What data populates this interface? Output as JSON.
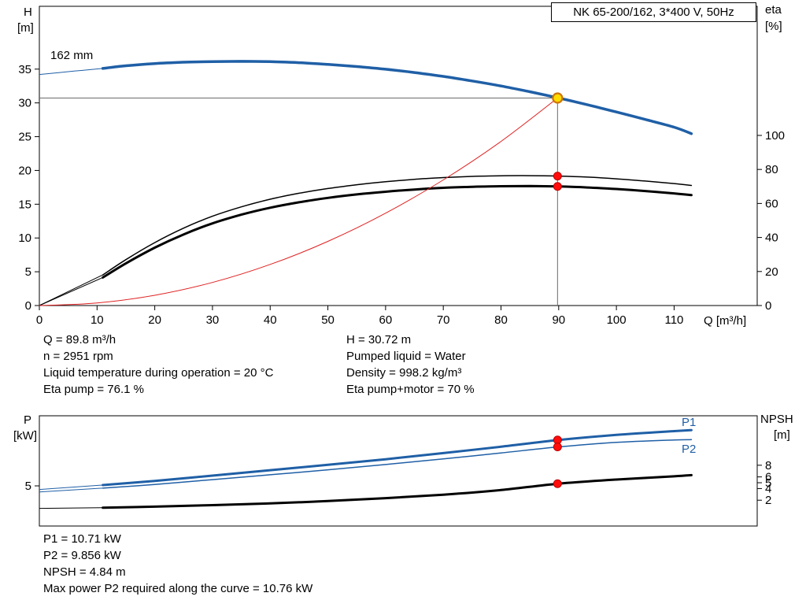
{
  "impeller_label": "162 mm",
  "info_top_left": [
    "Q = 89.8 m³/h",
    "n = 2951 rpm",
    "Liquid temperature during operation = 20 °C",
    "Eta pump = 76.1 %"
  ],
  "info_top_right": [
    "H = 30.72 m",
    "Pumped liquid = Water",
    "Density = 998.2 kg/m³",
    "Eta pump+motor = 70 %"
  ],
  "info_bottom": [
    "P1 = 10.71 kW",
    "P2 = 9.856 kW",
    "NPSH = 4.84 m",
    "Max power P2 required along the curve = 10.76 kW"
  ],
  "colors": {
    "curve_blue": "#1f5fa6",
    "curve_black": "#000000",
    "system_red": "#e02020",
    "marker_red": "#ff0c0c",
    "marker_ring": "#c00000",
    "duty_yellow": "#ffdc00",
    "duty_ring": "#cf7500",
    "guide": "#6b6b6b"
  },
  "chart_data": [
    {
      "id": "qh-eta-chart",
      "type": "line",
      "title": "NK 65-200/162, 3*400 V, 50Hz",
      "x_axis": {
        "title": "Q [m³/h]",
        "min": 0,
        "max": 124.4,
        "show_tick_labels": true,
        "ticks": [
          0,
          10,
          20,
          30,
          40,
          50,
          60,
          70,
          80,
          90,
          100,
          110
        ]
      },
      "y_left": {
        "title_lines": [
          "H",
          "[m]"
        ],
        "min": 0,
        "max": 44.3,
        "ticks": [
          0,
          5,
          10,
          15,
          20,
          25,
          30,
          35
        ]
      },
      "y_right": {
        "title_lines": [
          "eta",
          "[%]"
        ],
        "min": 0,
        "max": 175.9,
        "ticks": [
          0,
          20,
          40,
          60,
          80,
          100
        ]
      },
      "duty_point": {
        "q": 89.8,
        "h": 30.72
      },
      "series": [
        {
          "id": "h-curve-162mm",
          "axis": "left",
          "color": "#1f5fa6",
          "width": 3.5,
          "lead": [
            [
              0,
              34.2
            ],
            [
              6,
              34.7
            ],
            [
              11,
              35.1
            ]
          ],
          "points": [
            [
              11,
              35.1
            ],
            [
              15,
              35.5
            ],
            [
              20,
              35.82
            ],
            [
              25,
              36.02
            ],
            [
              30,
              36.12
            ],
            [
              35,
              36.15
            ],
            [
              40,
              36.1
            ],
            [
              45,
              35.95
            ],
            [
              50,
              35.7
            ],
            [
              55,
              35.38
            ],
            [
              60,
              34.98
            ],
            [
              65,
              34.5
            ],
            [
              70,
              33.92
            ],
            [
              75,
              33.25
            ],
            [
              80,
              32.5
            ],
            [
              85,
              31.65
            ],
            [
              90,
              30.72
            ],
            [
              95,
              29.72
            ],
            [
              100,
              28.65
            ],
            [
              105,
              27.55
            ],
            [
              110,
              26.4
            ],
            [
              113,
              25.45
            ]
          ]
        },
        {
          "id": "eta-pump-curve",
          "axis": "right",
          "color": "#000000",
          "width": 1.5,
          "lead": [
            [
              0,
              0
            ],
            [
              11,
              18
            ]
          ],
          "points": [
            [
              11,
              18
            ],
            [
              15,
              27
            ],
            [
              20,
              37
            ],
            [
              25,
              45.5
            ],
            [
              30,
              52.5
            ],
            [
              35,
              58
            ],
            [
              40,
              62.5
            ],
            [
              45,
              66
            ],
            [
              50,
              68.8
            ],
            [
              55,
              71
            ],
            [
              60,
              72.8
            ],
            [
              65,
              74.2
            ],
            [
              70,
              75.2
            ],
            [
              75,
              75.9
            ],
            [
              80,
              76.25
            ],
            [
              85,
              76.35
            ],
            [
              90,
              76.1
            ],
            [
              95,
              75.5
            ],
            [
              100,
              74.5
            ],
            [
              105,
              73.2
            ],
            [
              110,
              71.7
            ],
            [
              113,
              70.6
            ]
          ]
        },
        {
          "id": "eta-pump-motor-curve",
          "axis": "right",
          "color": "#000000",
          "width": 3,
          "lead": [
            [
              0,
              0
            ],
            [
              11,
              16.5
            ]
          ],
          "points": [
            [
              11,
              16.5
            ],
            [
              15,
              24.8
            ],
            [
              20,
              34
            ],
            [
              25,
              41.8
            ],
            [
              30,
              48.3
            ],
            [
              35,
              53.4
            ],
            [
              40,
              57.5
            ],
            [
              45,
              60.7
            ],
            [
              50,
              63.3
            ],
            [
              55,
              65.3
            ],
            [
              60,
              66.9
            ],
            [
              65,
              68.2
            ],
            [
              70,
              69.2
            ],
            [
              75,
              69.8
            ],
            [
              80,
              70.15
            ],
            [
              85,
              70.25
            ],
            [
              90,
              70
            ],
            [
              95,
              69.4
            ],
            [
              100,
              68.5
            ],
            [
              105,
              67.3
            ],
            [
              110,
              65.9
            ],
            [
              113,
              64.9
            ]
          ]
        },
        {
          "id": "system-curve",
          "axis": "left",
          "color": "#e02020",
          "width": 1,
          "points": [
            [
              0,
              0
            ],
            [
              10,
              0.38
            ],
            [
              20,
              1.52
            ],
            [
              30,
              3.42
            ],
            [
              40,
              6.08
            ],
            [
              50,
              9.5
            ],
            [
              60,
              13.67
            ],
            [
              70,
              18.6
            ],
            [
              80,
              24.3
            ],
            [
              89.8,
              30.72
            ]
          ]
        }
      ],
      "guides": [
        {
          "type": "v",
          "q": 89.8,
          "from": 0,
          "to": 30.72
        },
        {
          "type": "h",
          "h": 30.72,
          "from": 0,
          "to": 89.8
        }
      ],
      "markers": [
        {
          "q": 89.8,
          "v": 30.72,
          "axis": "left",
          "style": "duty"
        },
        {
          "q": 89.8,
          "v": 76.1,
          "axis": "right",
          "style": "red"
        },
        {
          "q": 89.8,
          "v": 70,
          "axis": "right",
          "style": "red"
        }
      ]
    },
    {
      "id": "p-npsh-chart",
      "type": "line",
      "x_axis": {
        "title": "",
        "min": 0,
        "max": 124.4,
        "show_tick_labels": false,
        "ticks": []
      },
      "y_left": {
        "title_lines": [
          "P",
          "[kW]"
        ],
        "min": 0,
        "max": 13.73,
        "ticks": [
          5
        ]
      },
      "y_right": {
        "title_lines": [
          "NPSH",
          "[m]"
        ],
        "min": -2.43,
        "max": 16.49,
        "ticks": [
          2,
          4,
          5,
          6,
          8
        ]
      },
      "series": [
        {
          "id": "p1-curve",
          "label": "P1",
          "axis": "left",
          "color": "#1f5fa6",
          "width": 3,
          "lead": [
            [
              0,
              4.55
            ],
            [
              11,
              5.1
            ]
          ],
          "points": [
            [
              11,
              5.1
            ],
            [
              20,
              5.62
            ],
            [
              30,
              6.28
            ],
            [
              40,
              6.95
            ],
            [
              50,
              7.62
            ],
            [
              60,
              8.32
            ],
            [
              70,
              9.08
            ],
            [
              80,
              9.88
            ],
            [
              90,
              10.71
            ],
            [
              100,
              11.35
            ],
            [
              110,
              11.82
            ],
            [
              113,
              11.95
            ]
          ]
        },
        {
          "id": "p2-curve",
          "label": "P2",
          "axis": "left",
          "color": "#1f5fa6",
          "width": 1.5,
          "lead": [
            [
              0,
              4.25
            ],
            [
              11,
              4.72
            ]
          ],
          "points": [
            [
              11,
              4.72
            ],
            [
              20,
              5.18
            ],
            [
              30,
              5.78
            ],
            [
              40,
              6.38
            ],
            [
              50,
              7.0
            ],
            [
              60,
              7.66
            ],
            [
              70,
              8.36
            ],
            [
              80,
              9.1
            ],
            [
              90,
              9.856
            ],
            [
              100,
              10.42
            ],
            [
              110,
              10.72
            ],
            [
              113,
              10.76
            ]
          ]
        },
        {
          "id": "npsh-curve",
          "axis": "right",
          "color": "#000000",
          "width": 3,
          "lead": [
            [
              0,
              0.6
            ],
            [
              11,
              0.72
            ]
          ],
          "points": [
            [
              11,
              0.72
            ],
            [
              20,
              0.9
            ],
            [
              30,
              1.15
            ],
            [
              40,
              1.45
            ],
            [
              50,
              1.85
            ],
            [
              60,
              2.35
            ],
            [
              70,
              2.95
            ],
            [
              80,
              3.75
            ],
            [
              90,
              4.84
            ],
            [
              100,
              5.55
            ],
            [
              110,
              6.1
            ],
            [
              113,
              6.3
            ]
          ]
        }
      ],
      "markers": [
        {
          "q": 89.8,
          "v": 10.71,
          "axis": "left",
          "style": "red"
        },
        {
          "q": 89.8,
          "v": 9.856,
          "axis": "left",
          "style": "red"
        },
        {
          "q": 89.8,
          "v": 4.84,
          "axis": "right",
          "style": "red"
        }
      ]
    }
  ]
}
